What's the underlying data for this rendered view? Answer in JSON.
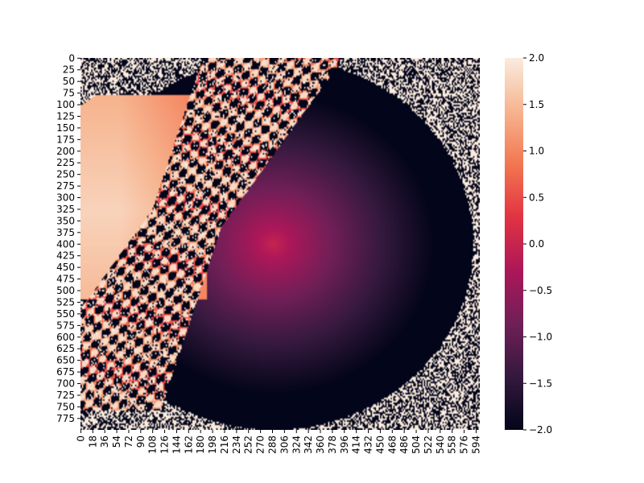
{
  "chart_data": {
    "type": "heatmap",
    "title": "",
    "xlabel": "",
    "ylabel": "",
    "x_tick_labels": [
      "0",
      "18",
      "36",
      "54",
      "72",
      "90",
      "108",
      "126",
      "144",
      "162",
      "180",
      "198",
      "216",
      "234",
      "252",
      "270",
      "288",
      "306",
      "324",
      "342",
      "360",
      "378",
      "396",
      "414",
      "432",
      "450",
      "468",
      "486",
      "504",
      "522",
      "540",
      "558",
      "576",
      "594"
    ],
    "x_ticks": [
      0,
      18,
      36,
      54,
      72,
      90,
      108,
      126,
      144,
      162,
      180,
      198,
      216,
      234,
      252,
      270,
      288,
      306,
      324,
      342,
      360,
      378,
      396,
      414,
      432,
      450,
      468,
      486,
      504,
      522,
      540,
      558,
      576,
      594
    ],
    "y_tick_labels": [
      "0",
      "25",
      "50",
      "75",
      "100",
      "125",
      "150",
      "175",
      "200",
      "225",
      "250",
      "275",
      "300",
      "325",
      "350",
      "375",
      "400",
      "425",
      "450",
      "475",
      "500",
      "525",
      "550",
      "575",
      "600",
      "625",
      "650",
      "675",
      "700",
      "725",
      "750",
      "775"
    ],
    "y_ticks": [
      0,
      25,
      50,
      75,
      100,
      125,
      150,
      175,
      200,
      225,
      250,
      275,
      300,
      325,
      350,
      375,
      400,
      425,
      450,
      475,
      500,
      525,
      550,
      575,
      600,
      625,
      650,
      675,
      700,
      725,
      750,
      775
    ],
    "xlim": [
      0,
      600
    ],
    "ylim": [
      800,
      0
    ],
    "colorbar": {
      "colormap": "rocket",
      "range": [
        -2.0,
        2.0
      ],
      "tick_values": [
        2.0,
        1.5,
        1.0,
        0.5,
        0.0,
        -0.5,
        -1.0,
        -1.5,
        -2.0
      ],
      "tick_labels": [
        "2.0",
        "1.5",
        "1.0",
        "0.5",
        "0.0",
        "−0.5",
        "−1.0",
        "−1.5",
        "−2.0"
      ]
    },
    "grid": false,
    "colormap_stops": [
      "#03051a",
      "#35193e",
      "#701f57",
      "#ad1759",
      "#e13342",
      "#f37651",
      "#f6b48f",
      "#faebdd"
    ]
  }
}
